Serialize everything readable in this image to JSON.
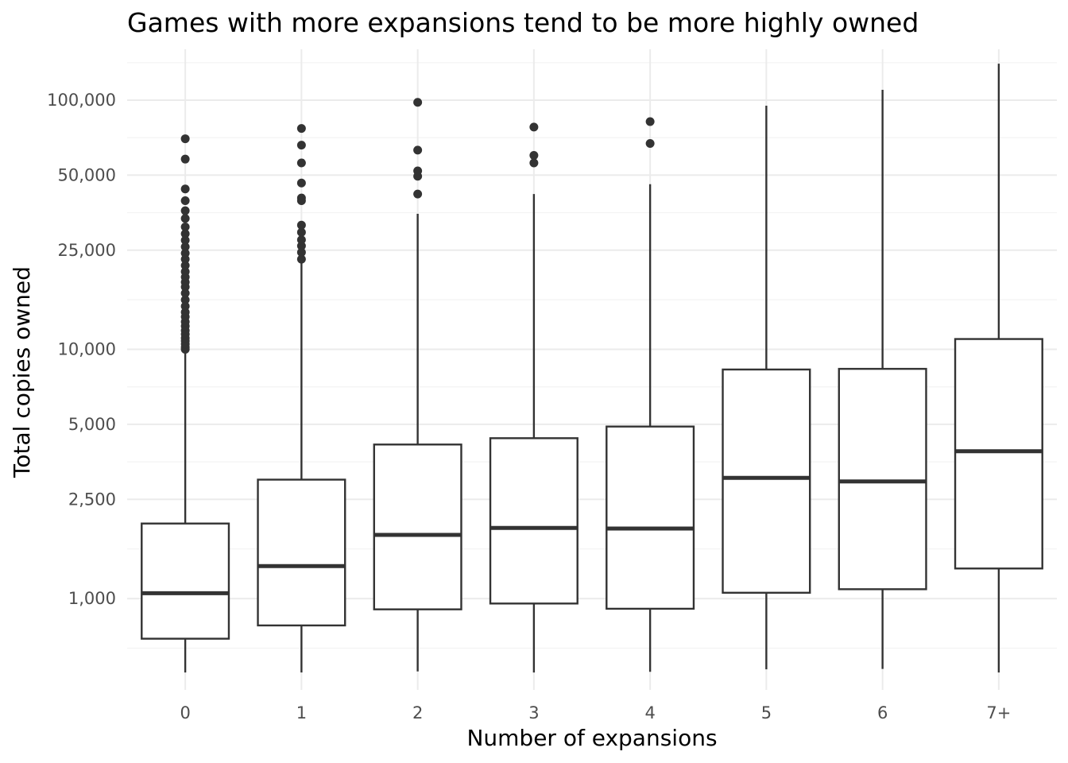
{
  "chart_data": {
    "type": "boxplot",
    "title": "Games with more expansions tend to be more highly owned",
    "xlabel": "Number of expansions",
    "ylabel": "Total copies owned",
    "y_scale": "log10",
    "ylim": [
      430,
      160000
    ],
    "y_ticks": [
      1000,
      2500,
      5000,
      10000,
      25000,
      50000,
      100000
    ],
    "y_tick_labels": [
      "1,000",
      "2,500",
      "5,000",
      "10,000",
      "25,000",
      "50,000",
      "100,000"
    ],
    "grid": true,
    "legend": "none",
    "categories": [
      "0",
      "1",
      "2",
      "3",
      "4",
      "5",
      "6",
      "7+"
    ],
    "boxes": [
      {
        "category": "0",
        "whisker_low": 505,
        "q1": 690,
        "median": 1050,
        "q3": 2000,
        "whisker_high": 9800,
        "outliers": [
          10000,
          10200,
          10500,
          10800,
          11100,
          11500,
          11900,
          12400,
          12900,
          13500,
          14100,
          14900,
          15800,
          16800,
          17800,
          18600,
          19500,
          20500,
          21700,
          23000,
          24300,
          25800,
          27400,
          29100,
          31000,
          33500,
          36000,
          39500,
          44000,
          58000,
          70000
        ]
      },
      {
        "category": "1",
        "whisker_low": 505,
        "q1": 780,
        "median": 1350,
        "q3": 3000,
        "whisker_high": 23000,
        "outliers": [
          23000,
          24500,
          26000,
          27500,
          29500,
          31500,
          39500,
          40500,
          46500,
          56000,
          66000,
          77000
        ]
      },
      {
        "category": "2",
        "whisker_low": 510,
        "q1": 905,
        "median": 1800,
        "q3": 4150,
        "whisker_high": 35000,
        "outliers": [
          42000,
          49500,
          52000,
          63000,
          98000
        ]
      },
      {
        "category": "3",
        "whisker_low": 505,
        "q1": 955,
        "median": 1920,
        "q3": 4400,
        "whisker_high": 42000,
        "outliers": [
          56000,
          60000,
          78000
        ]
      },
      {
        "category": "4",
        "whisker_low": 508,
        "q1": 910,
        "median": 1910,
        "q3": 4900,
        "whisker_high": 46000,
        "outliers": [
          67000,
          82000
        ]
      },
      {
        "category": "5",
        "whisker_low": 520,
        "q1": 1055,
        "median": 3050,
        "q3": 8300,
        "whisker_high": 95000,
        "outliers": []
      },
      {
        "category": "6",
        "whisker_low": 522,
        "q1": 1090,
        "median": 2950,
        "q3": 8350,
        "whisker_high": 110000,
        "outliers": []
      },
      {
        "category": "7+",
        "whisker_low": 505,
        "q1": 1320,
        "median": 3900,
        "q3": 11000,
        "whisker_high": 140000,
        "outliers": []
      }
    ]
  }
}
